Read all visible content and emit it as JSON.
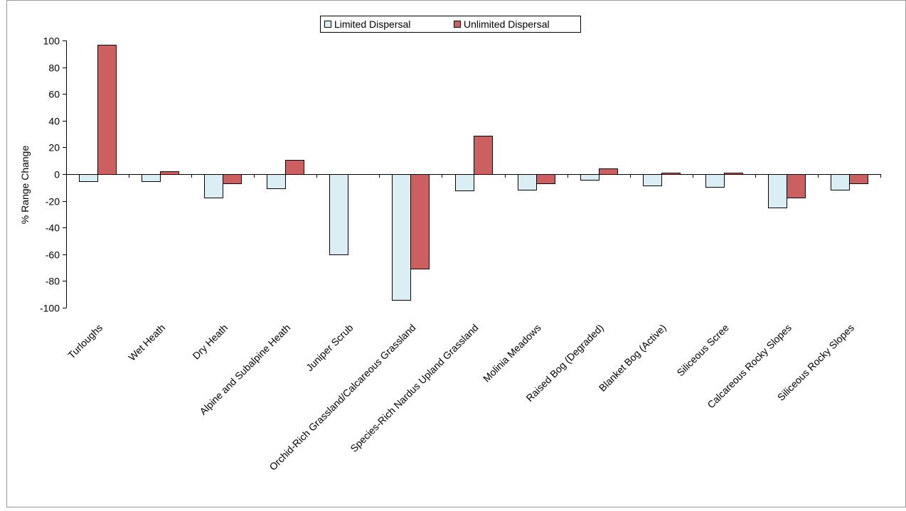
{
  "chart_data": {
    "type": "bar",
    "ylabel": "% Range Change",
    "xlabel": "",
    "ylim": [
      -100,
      100
    ],
    "yticks": [
      100,
      80,
      60,
      40,
      20,
      0,
      -20,
      -40,
      -60,
      -80,
      -100
    ],
    "grid": false,
    "legend_position": "top-center",
    "categories": [
      "Turloughs",
      "Wet Heath",
      "Dry Heath",
      "Alpine and Subalpine Heath",
      "Juniper Scrub",
      "Orchid-Rich Grassland/Calcareous Grassland",
      "Species-Rich Nardus Upland Grassland",
      "Molinia Meadows",
      "Raised Bog (Degraded)",
      "Blanket Bog (Active)",
      "Siliceous Scree",
      "Calcareous Rocky Slopes",
      "Siliceous Rocky Slopes"
    ],
    "series": [
      {
        "name": "Limited Dispersal",
        "color": "#dbeef4",
        "values": [
          -5.5,
          -5.5,
          -17.5,
          -10.5,
          -60,
          -94,
          -12,
          -11.5,
          -4.5,
          -8.5,
          -9.5,
          -25,
          -11.5
        ]
      },
      {
        "name": "Unlimited Dispersal",
        "color": "#cc6060",
        "values": [
          97,
          2,
          -7,
          10.5,
          0,
          -71,
          28.5,
          -7,
          4.5,
          1,
          1,
          -17.5,
          -7
        ]
      }
    ]
  }
}
